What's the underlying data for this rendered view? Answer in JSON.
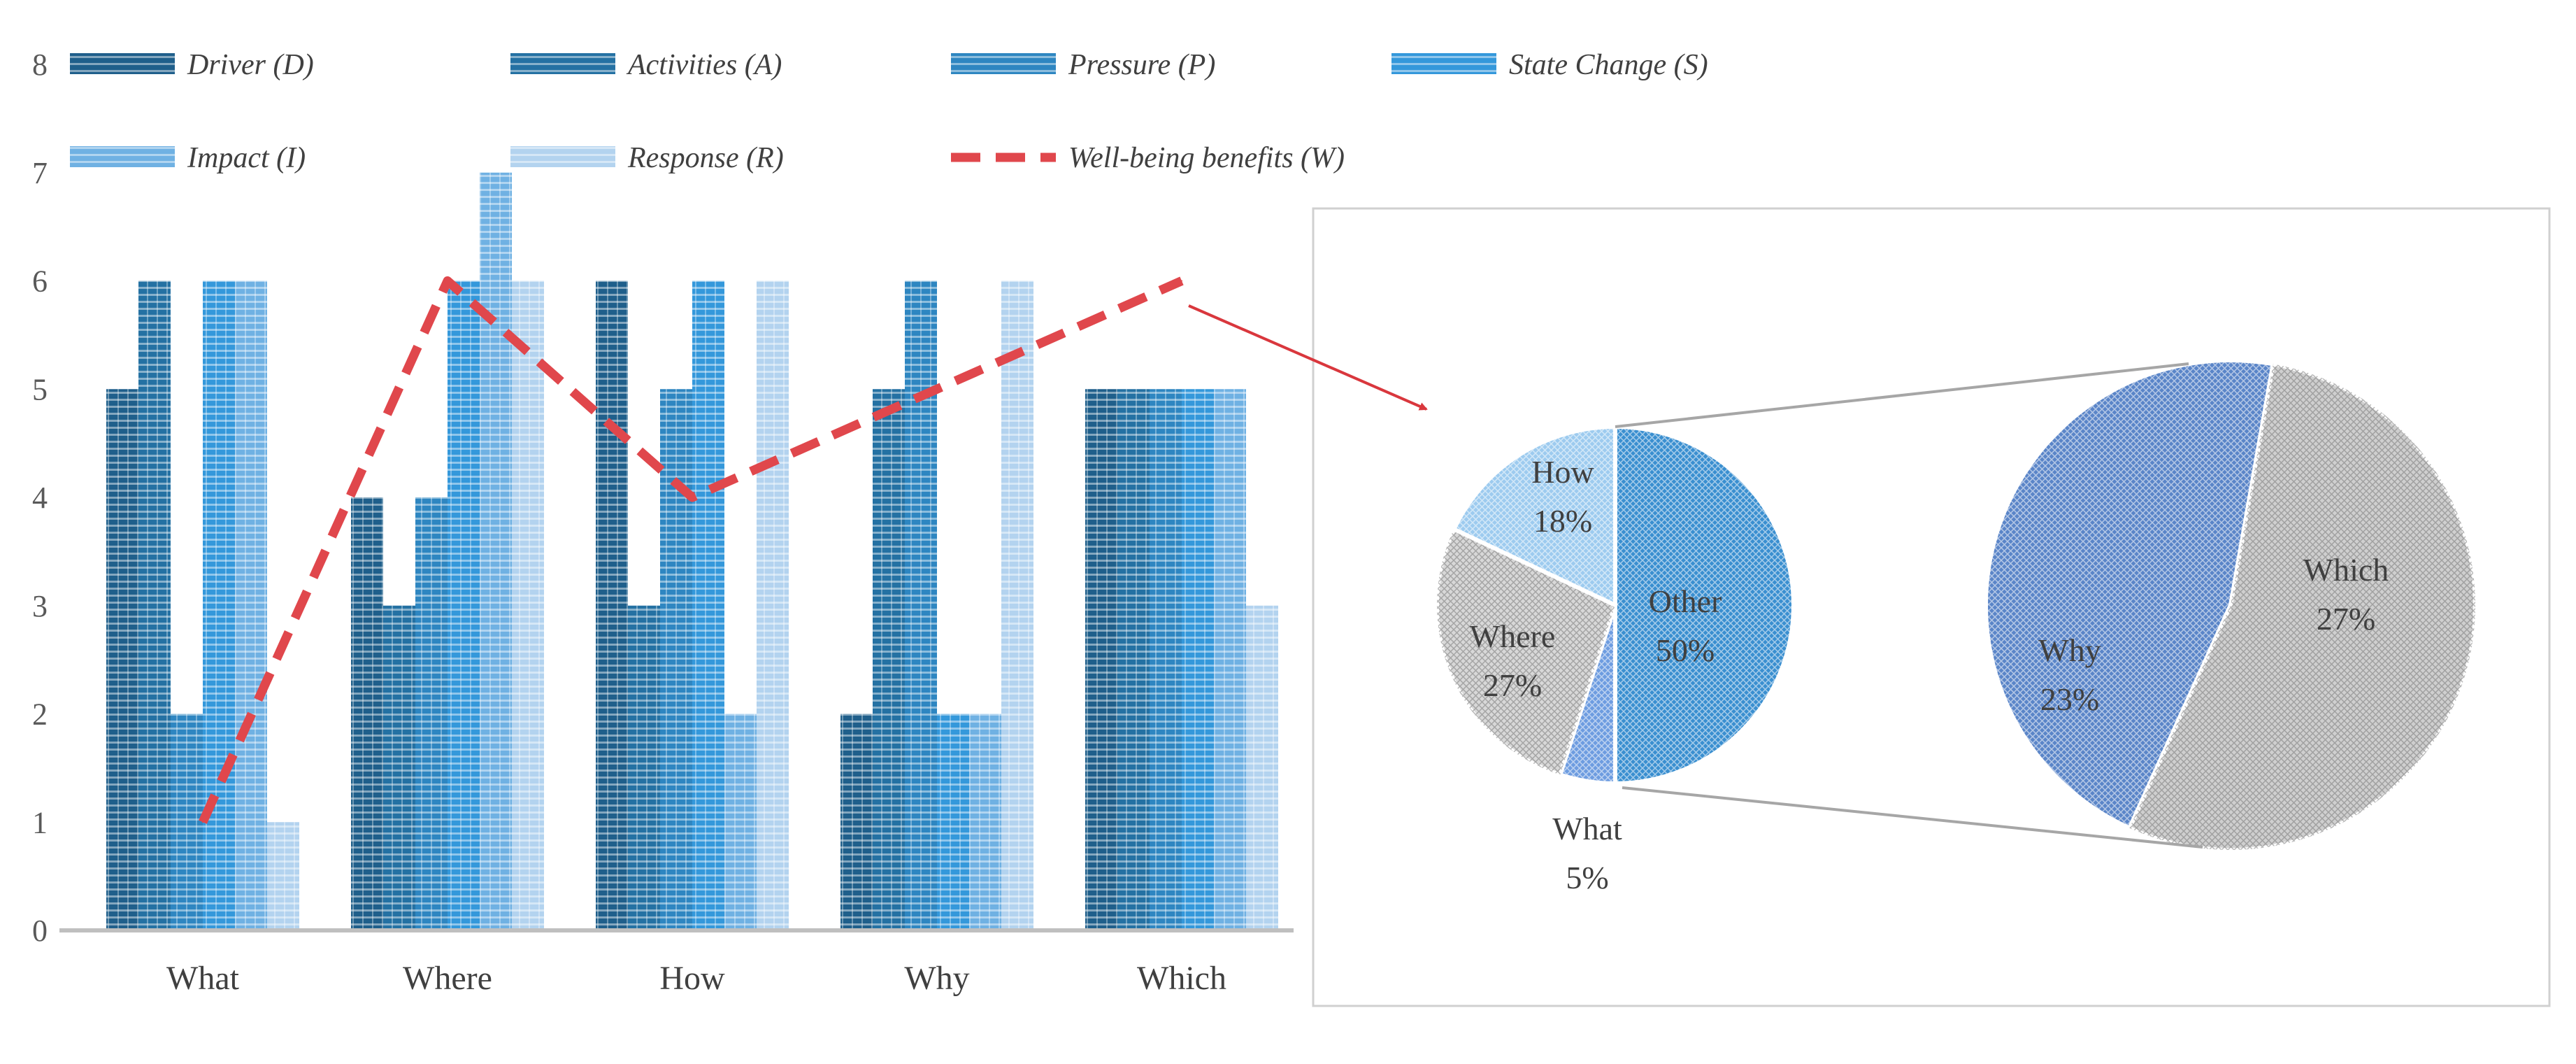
{
  "chart_data": [
    {
      "type": "bar",
      "title": "",
      "xlabel": "",
      "ylabel": "",
      "ylim": [
        0,
        8
      ],
      "yticks": [
        0,
        1,
        2,
        3,
        4,
        5,
        6,
        7,
        8
      ],
      "grid": false,
      "legend_position": "top",
      "categories": [
        "What",
        "Where",
        "How",
        "Why",
        "Which"
      ],
      "series": [
        {
          "name": "Driver (D)",
          "kind": "bar",
          "color": "#1f5f8b",
          "values": [
            5,
            4,
            6,
            2,
            5
          ]
        },
        {
          "name": "Activities (A)",
          "kind": "bar",
          "color": "#2471a3",
          "values": [
            6,
            3,
            3,
            5,
            5
          ]
        },
        {
          "name": "Pressure (P)",
          "kind": "bar",
          "color": "#2e86c1",
          "values": [
            2,
            4,
            5,
            6,
            5
          ]
        },
        {
          "name": "State Change (S)",
          "kind": "bar",
          "color": "#3498db",
          "values": [
            6,
            6,
            6,
            2,
            5
          ]
        },
        {
          "name": "Impact (I)",
          "kind": "bar",
          "color": "#6fb1e3",
          "values": [
            6,
            7,
            2,
            2,
            5
          ]
        },
        {
          "name": "Response (R)",
          "kind": "bar",
          "color": "#b3d3ef",
          "values": [
            1,
            6,
            6,
            6,
            3
          ]
        },
        {
          "name": "Well-being benefits (W)",
          "kind": "line",
          "style": "dashed",
          "color": "#e0474c",
          "values": [
            1,
            6,
            4,
            5,
            6
          ]
        }
      ]
    },
    {
      "type": "pie",
      "variant": "pie-of-pie",
      "title": "",
      "slices": [
        {
          "label": "Other",
          "value": 50,
          "display": "50%",
          "color": "#3a8fd0"
        },
        {
          "label": "What",
          "value": 5,
          "display": "5%",
          "color": "#6d9ce0"
        },
        {
          "label": "Where",
          "value": 27,
          "display": "27%",
          "color": "#d8d8d8"
        },
        {
          "label": "How",
          "value": 18,
          "display": "18%",
          "color": "#9dcbef"
        }
      ],
      "breakout": {
        "of": "Other",
        "slices": [
          {
            "label": "Why",
            "value": 23,
            "display": "23%",
            "color": "#5a85c8"
          },
          {
            "label": "Which",
            "value": 27,
            "display": "27%",
            "color": "#cfcfcf"
          }
        ]
      }
    }
  ]
}
